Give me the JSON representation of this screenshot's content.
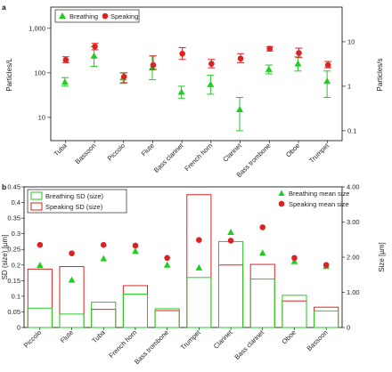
{
  "colors": {
    "breathing": "#22cc22",
    "speaking": "#dd2222",
    "errorbar_breathing": "#22cc22",
    "errorbar_speaking": "#dd2222"
  },
  "chart_data": [
    {
      "panel": "a",
      "type": "scatter",
      "categories": [
        "Tuba",
        "Bassoon",
        "Piccolo",
        "Flute",
        "Bass clarinet",
        "French horn",
        "Clarinet",
        "Bass trombone",
        "Oboe",
        "Trumpet"
      ],
      "ylabel_left": "Particles/L",
      "ylabel_right": "Particles/s",
      "yscale": "log",
      "ylim_left": [
        3,
        3000
      ],
      "ylim_right": [
        0.06,
        60
      ],
      "yticks_left": [
        "10",
        "100",
        "1,000"
      ],
      "yticks_right": [
        "0.1",
        "1",
        "10"
      ],
      "legend": {
        "position": "top-left",
        "entries": [
          "Breathing",
          "Speaking"
        ]
      },
      "series": [
        {
          "name": "Breathing",
          "marker": "triangle",
          "values": [
            62,
            240,
            78,
            130,
            37,
            55,
            15,
            120,
            160,
            65
          ],
          "err_low": [
            50,
            140,
            58,
            70,
            27,
            33,
            5,
            95,
            110,
            28
          ],
          "err_high": [
            78,
            390,
            100,
            240,
            50,
            88,
            28,
            150,
            230,
            110
          ]
        },
        {
          "name": "Speaking",
          "marker": "circle",
          "values": [
            195,
            390,
            82,
            150,
            270,
            160,
            210,
            350,
            280,
            150
          ],
          "err_low": [
            170,
            330,
            60,
            120,
            200,
            130,
            170,
            310,
            220,
            130
          ],
          "err_high": [
            230,
            460,
            100,
            240,
            370,
            200,
            270,
            390,
            360,
            180
          ]
        }
      ]
    },
    {
      "panel": "b",
      "type": "bar",
      "categories": [
        "Piccolo",
        "Flute",
        "Tuba",
        "French horn",
        "Bass trombone",
        "Trumpet",
        "Clarinet",
        "Bass clarinet",
        "Oboe",
        "Bassoon"
      ],
      "ylabel_left": "SD (size) [µm]",
      "ylabel_right": "Size [µm]",
      "ylim_left": [
        0,
        0.45
      ],
      "ylim_right": [
        0,
        4.0
      ],
      "yticks_left": [
        "0",
        "0.05",
        "0.1",
        "0.15",
        "0.2",
        "0.25",
        "0.3",
        "0.35",
        "0.4",
        "0.45"
      ],
      "yticks_right": [
        "0",
        "1.00",
        "2.00",
        "3.00",
        "4.00"
      ],
      "legend_left": {
        "position": "top-left",
        "entries": [
          "Breathing SD (size)",
          "Speaking SD (size)"
        ]
      },
      "legend_right": {
        "position": "top-right",
        "entries": [
          "Breathing mean size",
          "Speaking mean size"
        ]
      },
      "series": [
        {
          "name": "Breathing SD (size)",
          "values": [
            0.062,
            0.043,
            0.081,
            0.107,
            0.06,
            0.16,
            0.275,
            0.155,
            0.103,
            0.053
          ]
        },
        {
          "name": "Speaking SD (size)",
          "values": [
            0.187,
            0.195,
            0.058,
            0.134,
            0.054,
            0.425,
            0.2,
            0.202,
            0.085,
            0.065
          ]
        },
        {
          "name": "Breathing mean size",
          "values": [
            1.77,
            1.35,
            1.96,
            2.17,
            1.78,
            1.7,
            2.71,
            2.12,
            1.88,
            1.74
          ]
        },
        {
          "name": "Speaking mean size",
          "values": [
            2.35,
            2.11,
            2.35,
            2.33,
            1.98,
            2.49,
            2.47,
            2.85,
            1.98,
            1.78
          ]
        }
      ]
    }
  ]
}
